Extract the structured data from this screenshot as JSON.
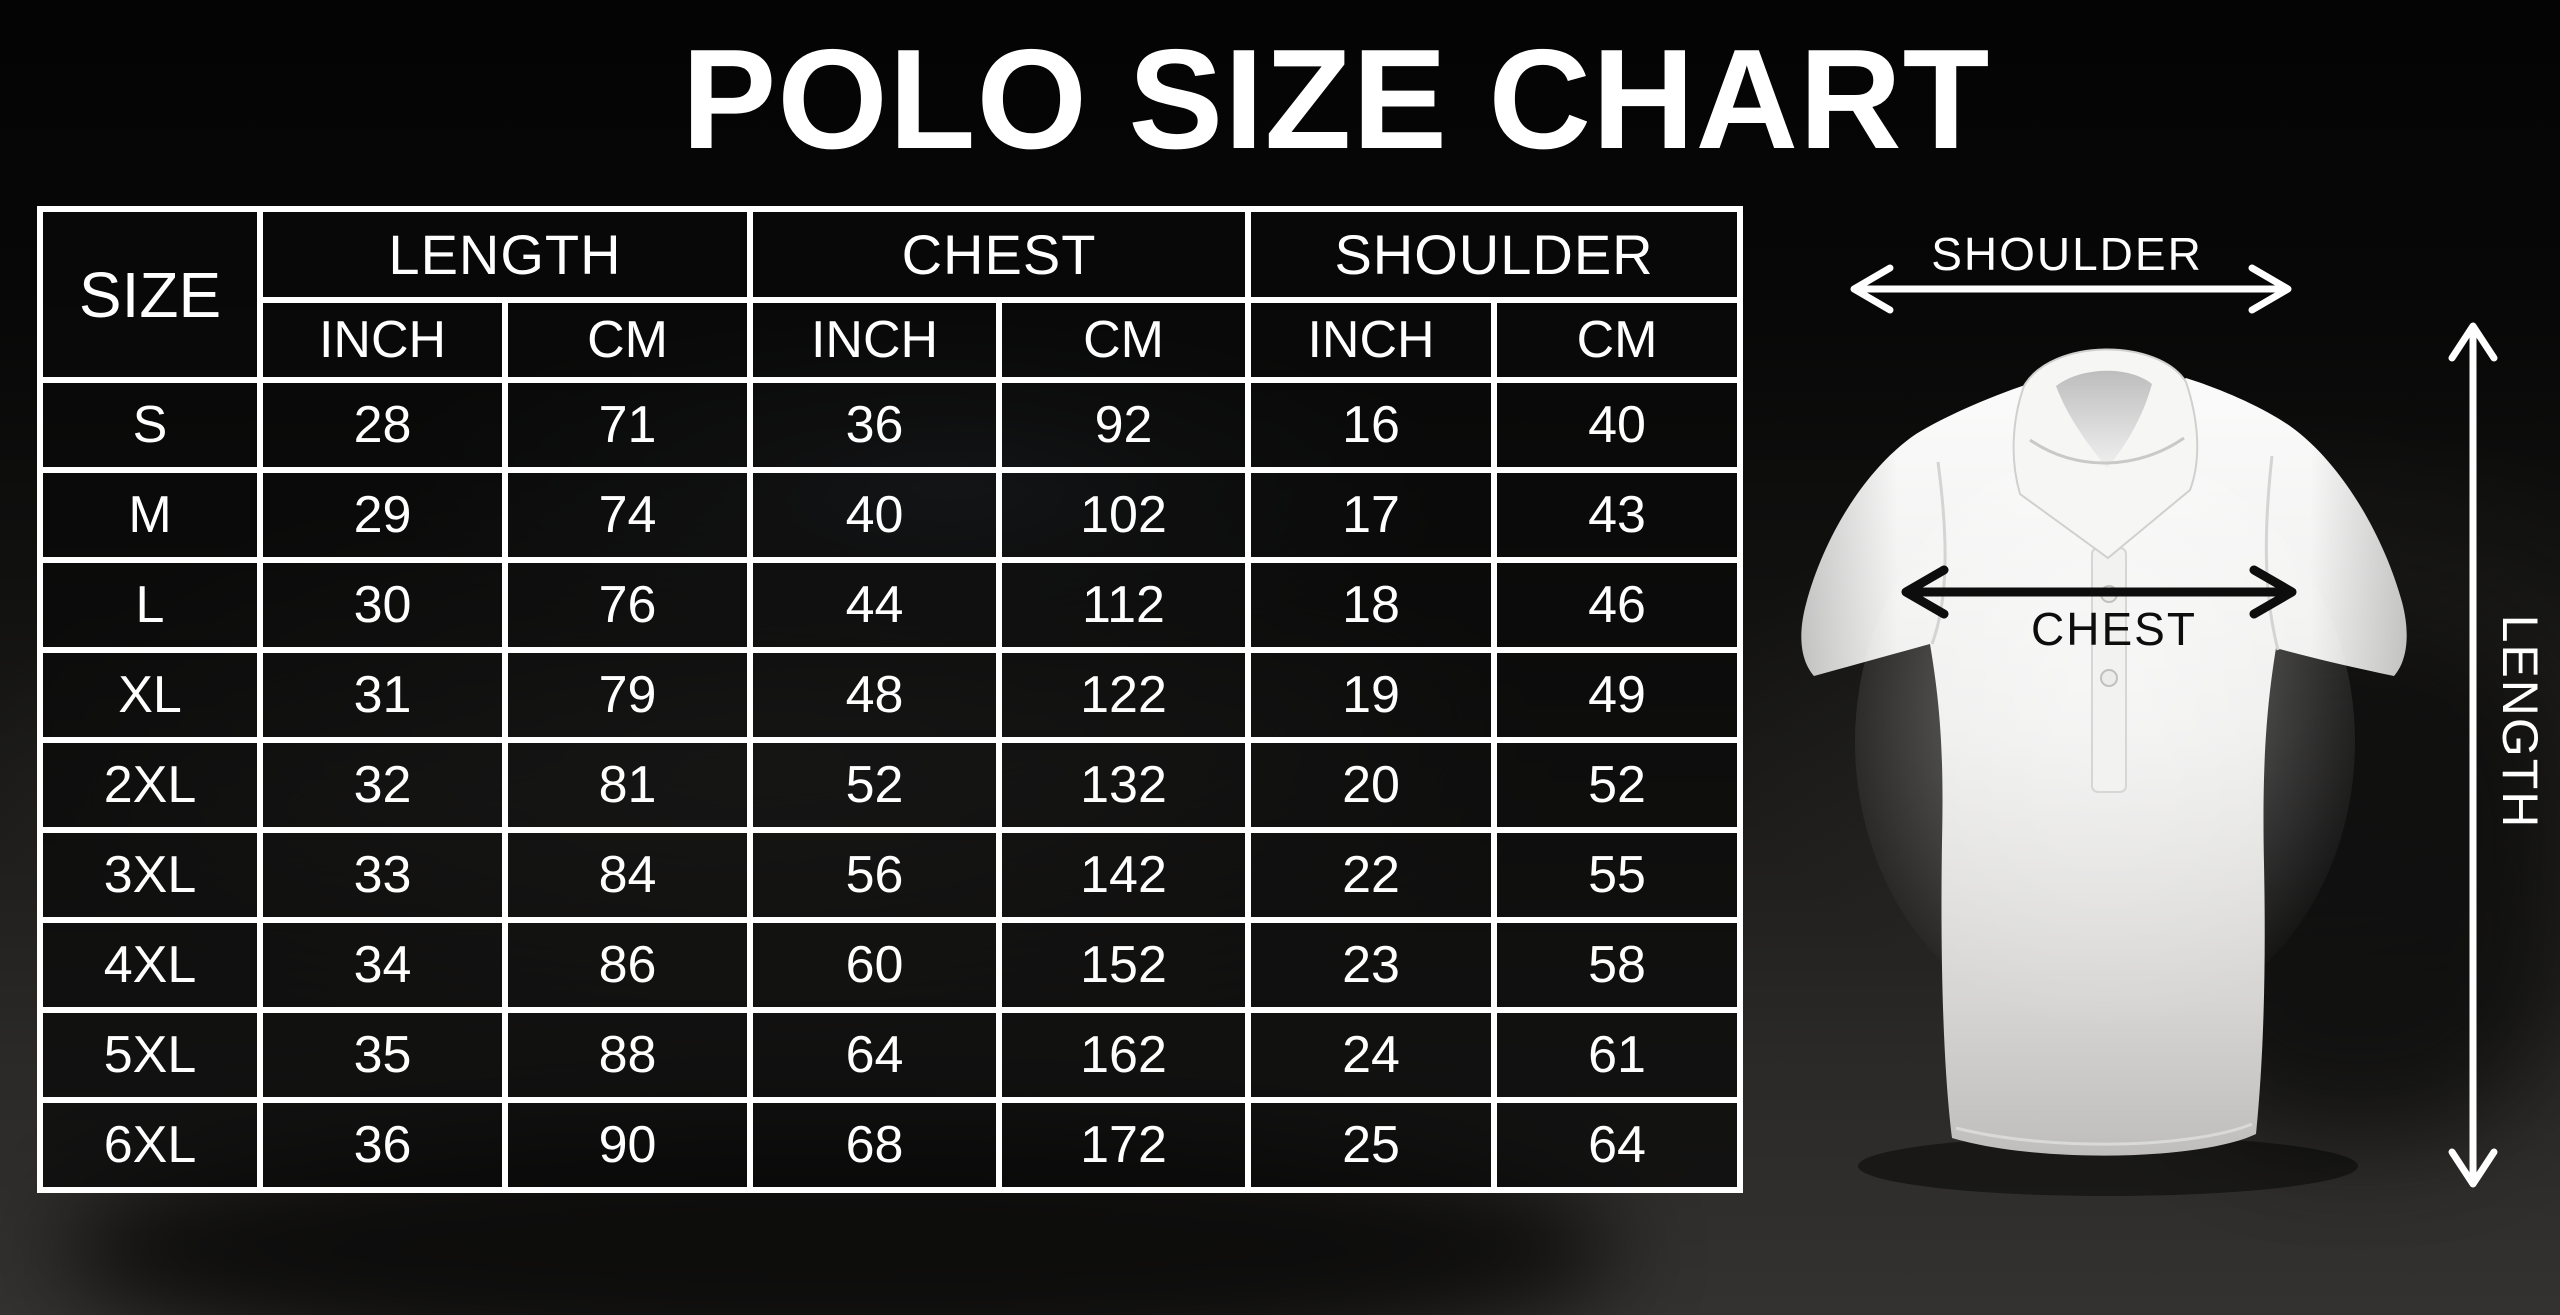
{
  "title": "POLO SIZE CHART",
  "table": {
    "size_header": "SIZE",
    "groups": [
      {
        "label": "LENGTH",
        "units": [
          "INCH",
          "CM"
        ]
      },
      {
        "label": "CHEST",
        "units": [
          "INCH",
          "CM"
        ]
      },
      {
        "label": "SHOULDER",
        "units": [
          "INCH",
          "CM"
        ]
      }
    ]
  },
  "chart_data": {
    "type": "table",
    "title": "POLO SIZE CHART",
    "columns": [
      "SIZE",
      "LENGTH INCH",
      "LENGTH CM",
      "CHEST INCH",
      "CHEST CM",
      "SHOULDER INCH",
      "SHOULDER CM"
    ],
    "rows": [
      [
        "S",
        28,
        71,
        36,
        92,
        16,
        40
      ],
      [
        "M",
        29,
        74,
        40,
        102,
        17,
        43
      ],
      [
        "L",
        30,
        76,
        44,
        112,
        18,
        46
      ],
      [
        "XL",
        31,
        79,
        48,
        122,
        19,
        49
      ],
      [
        "2XL",
        32,
        81,
        52,
        132,
        20,
        52
      ],
      [
        "3XL",
        33,
        84,
        56,
        142,
        22,
        55
      ],
      [
        "4XL",
        34,
        86,
        60,
        152,
        23,
        58
      ],
      [
        "5XL",
        35,
        88,
        64,
        162,
        24,
        61
      ],
      [
        "6XL",
        36,
        90,
        68,
        172,
        25,
        64
      ]
    ]
  },
  "diagram": {
    "shoulder_label": "SHOULDER",
    "chest_label": "CHEST",
    "length_label": "LENGTH"
  },
  "colors": {
    "background": "#060606",
    "table_border": "#ffffff",
    "cell_background": "rgba(9,9,9,0.74)",
    "text": "#ffffff",
    "chest_annotation": "#0d0d0d",
    "shirt": "#efefef"
  }
}
